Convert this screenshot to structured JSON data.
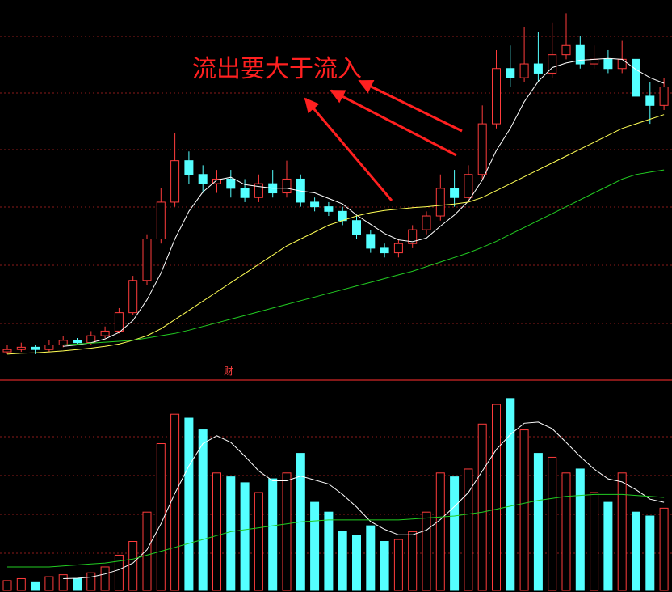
{
  "chart_data": {
    "type": "candlestick",
    "annotation": "流出要大于流入",
    "marker": "财",
    "ylim": [
      4.3,
      12.2
    ],
    "vlim": [
      0,
      100
    ],
    "up_color": "#ff3c3c",
    "down_color": "#54ffff",
    "open": [
      4.65,
      4.7,
      4.75,
      4.7,
      4.8,
      4.9,
      4.85,
      5.0,
      5.1,
      5.5,
      6.2,
      7.1,
      7.9,
      8.8,
      8.5,
      8.3,
      8.4,
      8.2,
      8.0,
      8.3,
      8.1,
      8.4,
      7.9,
      7.8,
      7.7,
      7.5,
      7.2,
      6.9,
      6.8,
      7.0,
      7.3,
      7.6,
      8.2,
      8.0,
      8.5,
      9.6,
      10.8,
      10.6,
      10.9,
      10.7,
      11.1,
      11.3,
      10.9,
      11.0,
      10.8,
      11.0,
      10.2,
      10.0
    ],
    "high": [
      4.8,
      4.85,
      4.8,
      4.9,
      5.0,
      4.95,
      5.1,
      5.2,
      5.6,
      6.3,
      7.2,
      8.2,
      9.4,
      9.0,
      8.7,
      8.6,
      8.6,
      8.4,
      8.5,
      8.6,
      8.8,
      8.5,
      8.0,
      7.9,
      7.8,
      7.6,
      7.3,
      7.0,
      7.1,
      7.4,
      7.7,
      8.5,
      8.6,
      8.7,
      10.0,
      11.2,
      11.3,
      11.7,
      11.6,
      11.8,
      12.0,
      11.5,
      11.3,
      11.2,
      11.4,
      11.1,
      10.5,
      10.6
    ],
    "low": [
      4.6,
      4.65,
      4.6,
      4.65,
      4.75,
      4.8,
      4.8,
      4.95,
      5.05,
      5.45,
      6.1,
      7.0,
      7.8,
      8.3,
      8.1,
      8.1,
      8.0,
      7.9,
      7.9,
      8.0,
      8.0,
      7.8,
      7.7,
      7.6,
      7.4,
      7.1,
      6.8,
      6.7,
      6.7,
      6.9,
      7.2,
      7.5,
      7.8,
      7.9,
      8.4,
      9.5,
      10.4,
      10.5,
      10.5,
      10.6,
      11.0,
      10.8,
      10.8,
      10.7,
      10.7,
      10.0,
      9.6,
      9.9
    ],
    "close": [
      4.7,
      4.75,
      4.7,
      4.8,
      4.9,
      4.85,
      5.0,
      5.1,
      5.5,
      6.2,
      7.1,
      7.9,
      8.8,
      8.5,
      8.3,
      8.4,
      8.2,
      8.0,
      8.3,
      8.1,
      8.4,
      7.9,
      7.8,
      7.7,
      7.5,
      7.2,
      6.9,
      6.8,
      7.0,
      7.3,
      7.6,
      8.2,
      8.0,
      8.5,
      9.6,
      10.8,
      10.6,
      10.9,
      10.7,
      11.1,
      11.3,
      10.9,
      11.0,
      10.8,
      11.0,
      10.2,
      10.0,
      10.4
    ],
    "volume": [
      5,
      6,
      4,
      7,
      8,
      6,
      9,
      12,
      18,
      25,
      40,
      75,
      90,
      88,
      82,
      60,
      58,
      55,
      50,
      57,
      60,
      70,
      45,
      40,
      30,
      28,
      33,
      25,
      26,
      30,
      40,
      60,
      58,
      62,
      85,
      95,
      98,
      82,
      70,
      68,
      60,
      62,
      50,
      45,
      60,
      40,
      38,
      42
    ],
    "price_lines": [
      {
        "color": "#ffffff",
        "values": [
          null,
          null,
          null,
          null,
          4.77,
          4.8,
          4.85,
          4.93,
          5.07,
          5.33,
          5.78,
          6.36,
          7.1,
          7.7,
          8.12,
          8.38,
          8.44,
          8.28,
          8.24,
          8.2,
          8.2,
          8.14,
          8.1,
          7.98,
          7.86,
          7.62,
          7.42,
          7.22,
          7.08,
          7.04,
          7.12,
          7.38,
          7.62,
          7.92,
          8.38,
          9.02,
          9.5,
          10.08,
          10.52,
          10.82,
          10.92,
          10.98,
          11.0,
          11.02,
          11.0,
          10.78,
          10.6,
          10.48
        ]
      },
      {
        "color": "#ffff55",
        "values": [
          4.6,
          4.62,
          4.63,
          4.65,
          4.67,
          4.7,
          4.73,
          4.77,
          4.82,
          4.9,
          5.0,
          5.15,
          5.35,
          5.55,
          5.75,
          5.95,
          6.15,
          6.35,
          6.55,
          6.75,
          6.95,
          7.1,
          7.25,
          7.4,
          7.5,
          7.6,
          7.67,
          7.72,
          7.75,
          7.78,
          7.8,
          7.83,
          7.86,
          7.9,
          8.0,
          8.15,
          8.3,
          8.45,
          8.6,
          8.75,
          8.9,
          9.05,
          9.2,
          9.35,
          9.5,
          9.6,
          9.7,
          9.8
        ]
      },
      {
        "color": "#22cc22",
        "values": [
          4.8,
          4.8,
          4.8,
          4.8,
          4.8,
          4.82,
          4.84,
          4.86,
          4.88,
          4.9,
          4.95,
          5.0,
          5.05,
          5.12,
          5.2,
          5.28,
          5.36,
          5.44,
          5.52,
          5.6,
          5.68,
          5.76,
          5.84,
          5.92,
          6.0,
          6.08,
          6.16,
          6.24,
          6.32,
          6.4,
          6.5,
          6.6,
          6.7,
          6.8,
          6.92,
          7.05,
          7.2,
          7.35,
          7.5,
          7.65,
          7.8,
          7.95,
          8.1,
          8.25,
          8.4,
          8.5,
          8.55,
          8.6
        ]
      }
    ],
    "volume_lines": [
      {
        "color": "#ffffff",
        "values": [
          null,
          null,
          null,
          null,
          6,
          6.2,
          6.8,
          8.4,
          10.6,
          14,
          20.8,
          34,
          49.6,
          63.6,
          75,
          79,
          75.6,
          68.6,
          61,
          56,
          56,
          58.4,
          56.4,
          54.4,
          49,
          42.6,
          35.2,
          31.2,
          28.4,
          28.4,
          30.8,
          36.2,
          42.8,
          50,
          61,
          72,
          79.6,
          85.4,
          86,
          82.6,
          75.6,
          68.4,
          62,
          57,
          55.4,
          51.4,
          46.6,
          45
        ]
      },
      {
        "color": "#22cc22",
        "values": [
          12,
          12,
          12,
          12,
          12.5,
          13,
          13.5,
          14,
          15,
          16,
          18,
          20,
          22,
          24,
          26,
          28,
          30,
          31,
          32,
          33,
          34,
          35,
          35.5,
          36,
          36,
          36,
          36,
          36,
          36,
          36.5,
          37,
          37.5,
          38,
          39,
          40,
          41.5,
          43,
          44.5,
          46,
          47,
          48,
          48.5,
          49,
          49,
          49,
          48.5,
          48,
          47.5
        ]
      }
    ]
  }
}
